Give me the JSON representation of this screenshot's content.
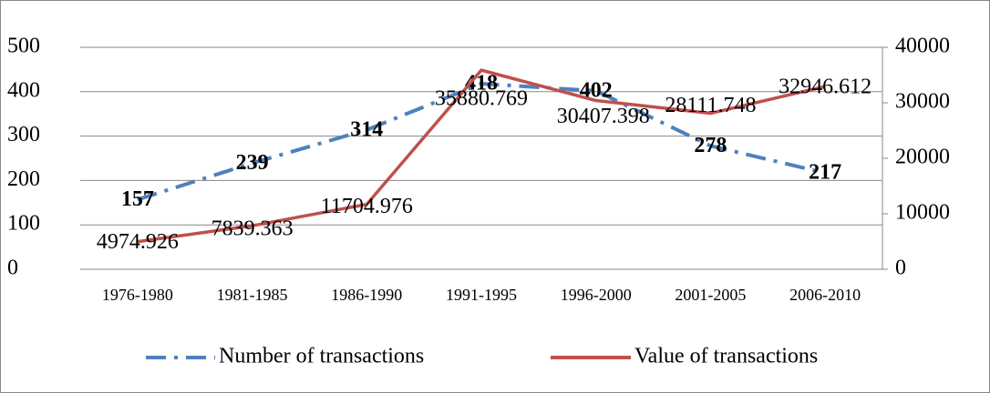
{
  "chart_data": {
    "type": "line",
    "categories": [
      "1976-1980",
      "1981-1985",
      "1986-1990",
      "1991-1995",
      "1996-2000",
      "2001-2005",
      "2006-2010"
    ],
    "series": [
      {
        "name": "Number of transactions",
        "color": "#4f81bd",
        "values": [
          157,
          239,
          314,
          418,
          402,
          278,
          217
        ]
      },
      {
        "name": "Value of transactions",
        "color": "#c0504d",
        "axis": "y2",
        "values": [
          4974.926,
          7839.363,
          11704.976,
          35880.769,
          30407.398,
          28111.748,
          32946.612
        ]
      }
    ],
    "ylim": [
      0,
      500
    ],
    "yticks": [
      0,
      100,
      200,
      300,
      400,
      500
    ],
    "y2lim": [
      0,
      40000
    ],
    "y2ticks": [
      0,
      10000,
      20000,
      30000,
      40000
    ],
    "grid": true,
    "legend": "bottom"
  }
}
